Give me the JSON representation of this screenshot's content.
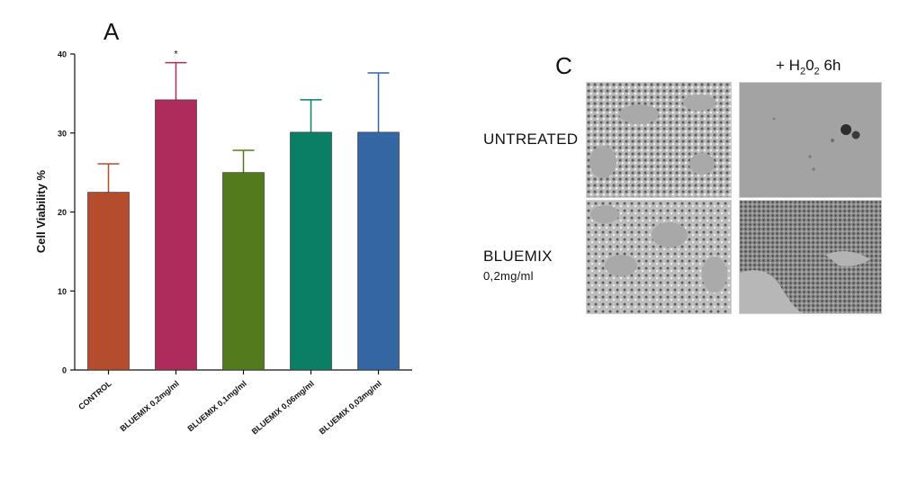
{
  "panel_a": {
    "letter": "A"
  },
  "panel_c": {
    "letter": "C",
    "column_header_parts": [
      "+ H",
      "2",
      "0",
      "2",
      " 6h"
    ],
    "rows": [
      {
        "label": "UNTREATED",
        "sublabel": ""
      },
      {
        "label": "BLUEMIX",
        "sublabel": "0,2mg/ml"
      }
    ]
  },
  "chart_data": {
    "type": "bar",
    "title": "",
    "xlabel": "",
    "ylabel": "Cell Viability %",
    "ylim": [
      0,
      40
    ],
    "yticks": [
      0,
      10,
      20,
      30,
      40
    ],
    "categories": [
      "CONTROL",
      "BLUEMIX 0,2mg/ml",
      "BLUEMIX 0,1mg/ml",
      "BLUEMIX 0,06mg/ml",
      "BLUEMIX 0,03mg/ml"
    ],
    "values": [
      22.5,
      34.2,
      25.0,
      30.1,
      30.1
    ],
    "error_upper": [
      26.1,
      38.9,
      27.8,
      34.2,
      37.6
    ],
    "significance": [
      "",
      "*",
      "",
      "",
      ""
    ],
    "colors": [
      "#b34d2e",
      "#ad2c5c",
      "#537a1d",
      "#0b7f65",
      "#3466a4"
    ],
    "grid": false
  }
}
